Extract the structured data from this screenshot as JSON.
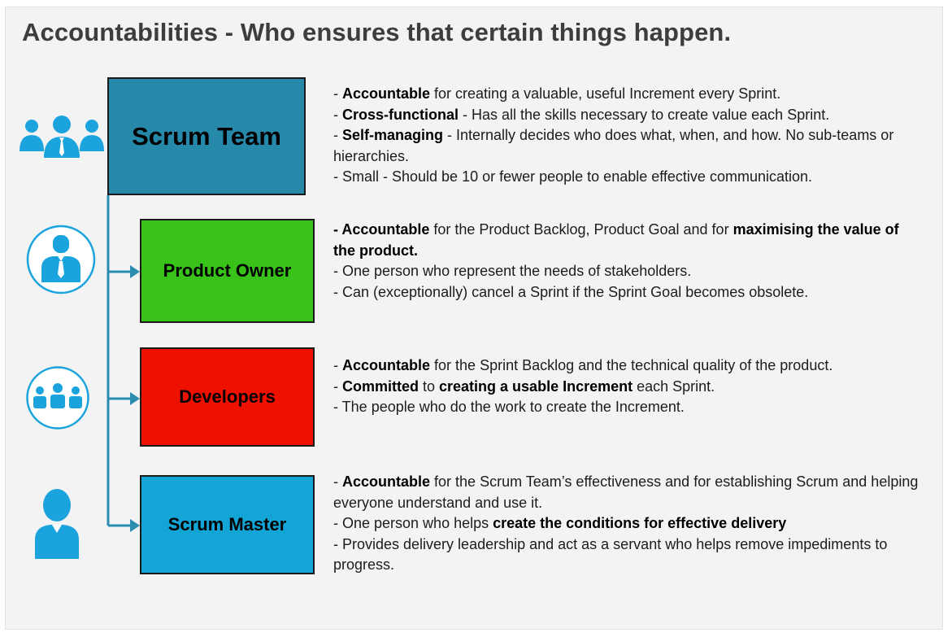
{
  "title": "Accountabilities - Who ensures that certain things happen.",
  "colors": {
    "scrum_team": "#2689a9",
    "product_owner": "#38c21a",
    "developers": "#ee1100",
    "scrum_master": "#12a5d6",
    "connector": "#2a8db0",
    "icon": "#1aa3dd"
  },
  "roles": {
    "scrum_team": {
      "label": "Scrum Team",
      "icon": "team-group-icon",
      "lines": [
        {
          "pre": "- ",
          "bold": "Accountable",
          "post": " for creating a valuable, useful Increment every Sprint."
        },
        {
          "pre": "- ",
          "bold": "Cross-functional",
          "post": " - Has all the skills necessary to create value each Sprint."
        },
        {
          "pre": "- ",
          "bold": "Self-managing",
          "post": " - Internally decides who does what, when, and how. No sub-teams or hierarchies."
        },
        {
          "text": "- Small - Should be 10 or fewer people to enable effective communication."
        }
      ]
    },
    "product_owner": {
      "label": "Product Owner",
      "icon": "businessman-circle-icon",
      "lines": [
        {
          "bold": "- Accountable",
          "mid": " for the Product Backlog, Product Goal and for ",
          "bold2": "maximising the value of the product."
        },
        {
          "text": "- One person who represent the needs of stakeholders."
        },
        {
          "text": "- Can (exceptionally) cancel a Sprint if the Sprint Goal becomes obsolete."
        }
      ]
    },
    "developers": {
      "label": "Developers",
      "icon": "developers-circle-icon",
      "lines": [
        {
          "pre": "- ",
          "bold": "Accountable",
          "post": " for the Sprint Backlog and the technical quality of the product."
        },
        {
          "pre": "- ",
          "bold": "Committed",
          "mid": " to ",
          "bold2": "creating a usable Increment",
          "post": " each Sprint."
        },
        {
          "text": "- The people who do the work to create the Increment."
        }
      ]
    },
    "scrum_master": {
      "label": "Scrum Master",
      "icon": "person-icon",
      "lines": [
        {
          "pre": "- ",
          "bold": "Accountable",
          "post": " for the Scrum Team’s effectiveness and for establishing Scrum and helping everyone understand and use it."
        },
        {
          "pre": "- One person who helps ",
          "bold": "create the conditions for effective delivery"
        },
        {
          "text": "- Provides delivery leadership and act as a servant who helps remove impediments to progress."
        }
      ]
    }
  }
}
